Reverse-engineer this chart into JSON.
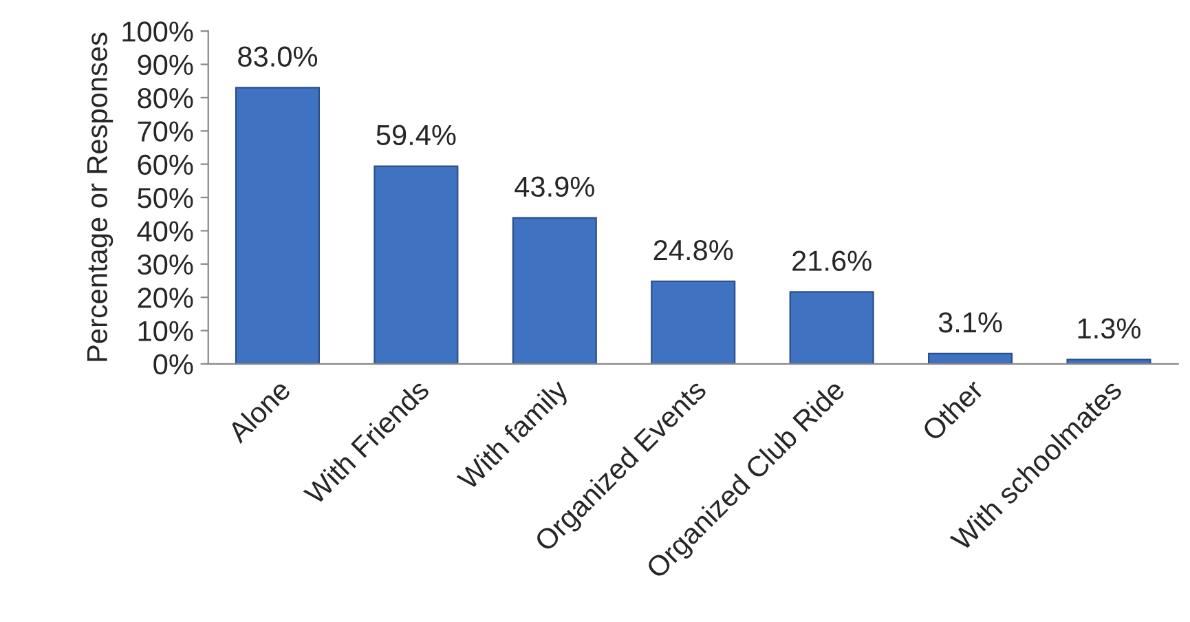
{
  "chart_data": {
    "type": "bar",
    "ylabel": "Percentage or Responses",
    "categories": [
      "Alone",
      "With Friends",
      "With family",
      "Organized Events",
      "Organized Club Ride",
      "Other",
      "With schoolmates"
    ],
    "values": [
      83.0,
      59.4,
      43.9,
      24.8,
      21.6,
      3.1,
      1.3
    ],
    "value_labels": [
      "83.0%",
      "59.4%",
      "43.9%",
      "24.8%",
      "21.6%",
      "3.1%",
      "1.3%"
    ],
    "color": "#3f72c0",
    "ylim": [
      0,
      100
    ],
    "yticks": [
      {
        "value": 0,
        "label": "0%"
      },
      {
        "value": 10,
        "label": "10%"
      },
      {
        "value": 20,
        "label": "20%"
      },
      {
        "value": 30,
        "label": "30%"
      },
      {
        "value": 40,
        "label": "40%"
      },
      {
        "value": 50,
        "label": "50%"
      },
      {
        "value": 60,
        "label": "60%"
      },
      {
        "value": 70,
        "label": "70%"
      },
      {
        "value": 80,
        "label": "80%"
      },
      {
        "value": 90,
        "label": "90%"
      },
      {
        "value": 100,
        "label": "100%"
      }
    ],
    "grid": false,
    "legend": false
  }
}
